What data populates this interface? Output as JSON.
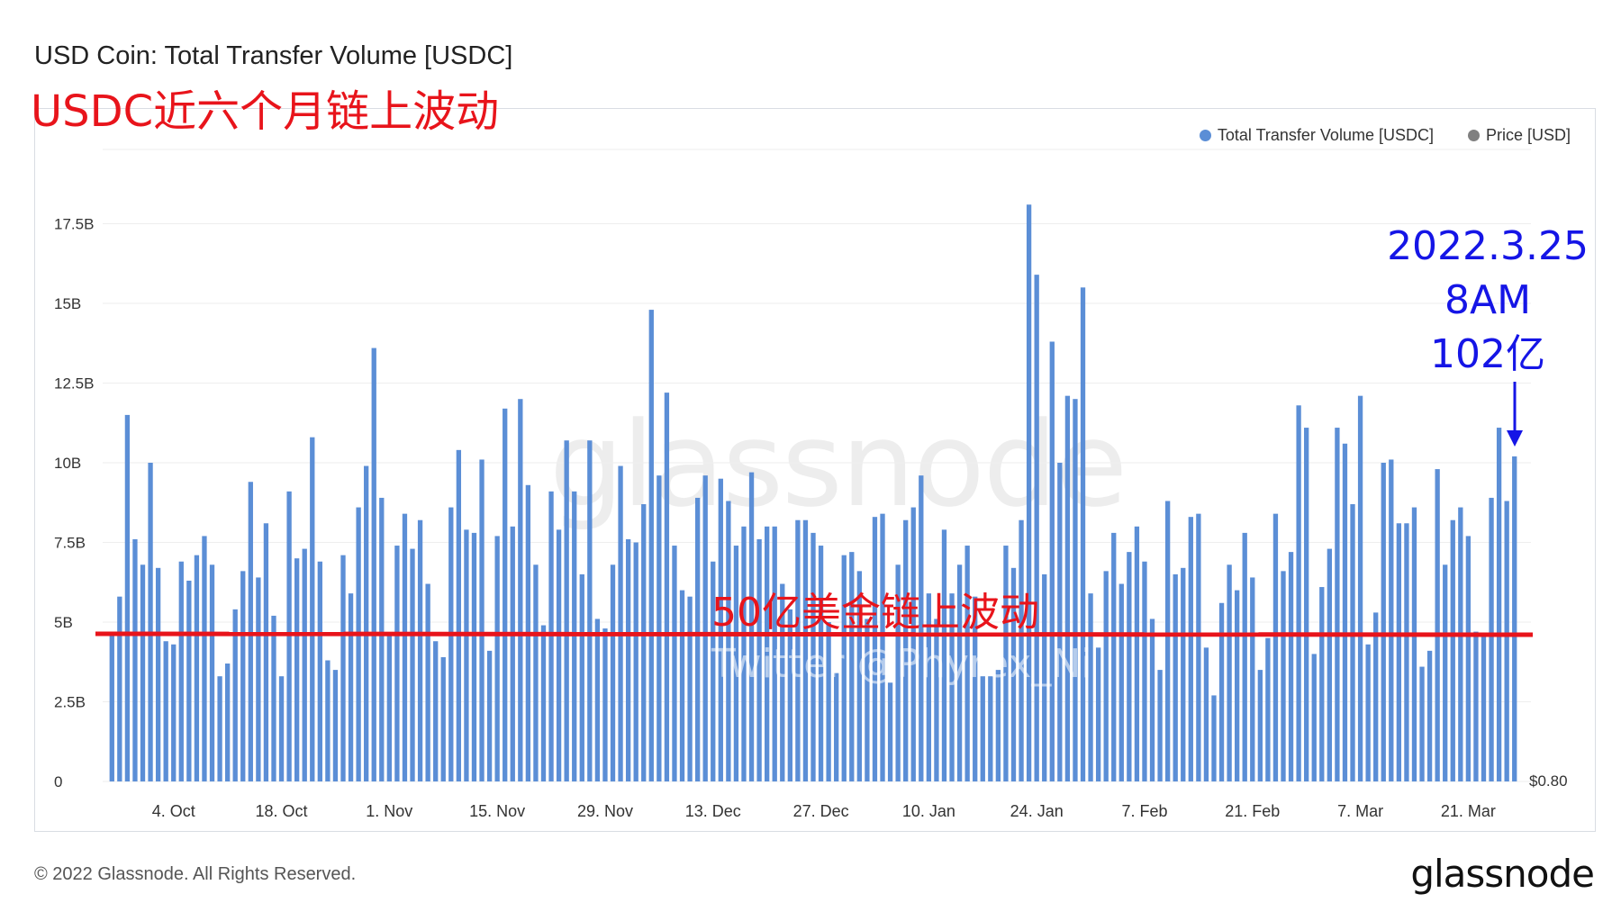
{
  "title": "USD Coin: Total Transfer Volume [USDC]",
  "annotation_title": "USDC近六个月链上波动",
  "annotation_line": "50亿美金链上波动",
  "annotation_blue": [
    "2022.3.25",
    "8AM",
    "102亿"
  ],
  "watermark": "glassnode",
  "twitter": "Twitter @Phyrex_Ni",
  "footer": "© 2022 Glassnode. All Rights Reserved.",
  "brand": "glassnode",
  "legend": [
    {
      "label": "Total Transfer Volume [USDC]",
      "color": "#5b8ed6"
    },
    {
      "label": "Price [USD]",
      "color": "#808080"
    }
  ],
  "colors": {
    "bar": "#5b8ed6",
    "threshold_line": "#e8141b",
    "annotation_arrow": "#1515e6"
  },
  "chart_data": {
    "type": "bar",
    "ylim": [
      0,
      20
    ],
    "yticks": [
      {
        "v": 0,
        "label": "0"
      },
      {
        "v": 2.5,
        "label": "2.5B"
      },
      {
        "v": 5,
        "label": "5B"
      },
      {
        "v": 7.5,
        "label": "7.5B"
      },
      {
        "v": 10,
        "label": "10B"
      },
      {
        "v": 12.5,
        "label": "12.5B"
      },
      {
        "v": 15,
        "label": "15B"
      },
      {
        "v": 17.5,
        "label": "17.5B"
      }
    ],
    "xticks": [
      {
        "index": 8,
        "label": "4. Oct"
      },
      {
        "index": 22,
        "label": "18. Oct"
      },
      {
        "index": 36,
        "label": "1. Nov"
      },
      {
        "index": 50,
        "label": "15. Nov"
      },
      {
        "index": 64,
        "label": "29. Nov"
      },
      {
        "index": 78,
        "label": "13. Dec"
      },
      {
        "index": 92,
        "label": "27. Dec"
      },
      {
        "index": 106,
        "label": "10. Jan"
      },
      {
        "index": 120,
        "label": "24. Jan"
      },
      {
        "index": 134,
        "label": "7. Feb"
      },
      {
        "index": 148,
        "label": "21. Feb"
      },
      {
        "index": 162,
        "label": "7. Mar"
      },
      {
        "index": 176,
        "label": "21. Mar"
      }
    ],
    "right_axis_label": "$0.80",
    "threshold": 4.9,
    "unit": "B",
    "series": [
      {
        "name": "Total Transfer Volume [USDC]",
        "values": [
          4.6,
          5.8,
          11.5,
          7.6,
          6.8,
          10.0,
          6.7,
          4.4,
          4.3,
          6.9,
          6.3,
          7.1,
          7.7,
          6.8,
          3.3,
          3.7,
          5.4,
          6.6,
          9.4,
          6.4,
          8.1,
          5.2,
          3.3,
          9.1,
          7.0,
          7.3,
          10.8,
          6.9,
          3.8,
          3.5,
          7.1,
          5.9,
          8.6,
          9.9,
          13.6,
          8.9,
          4.6,
          7.4,
          8.4,
          7.3,
          8.2,
          6.2,
          4.4,
          3.9,
          8.6,
          10.4,
          7.9,
          7.8,
          10.1,
          4.1,
          7.7,
          11.7,
          8.0,
          12.0,
          9.3,
          6.8,
          4.9,
          9.1,
          7.9,
          10.7,
          9.1,
          6.5,
          10.7,
          5.1,
          4.8,
          6.8,
          9.9,
          7.6,
          7.5,
          8.7,
          14.8,
          9.6,
          12.2,
          7.4,
          6.0,
          5.8,
          8.9,
          9.6,
          6.9,
          9.5,
          8.8,
          7.4,
          8.0,
          9.7,
          7.6,
          8.0,
          8.0,
          6.2,
          5.4,
          8.2,
          8.2,
          7.8,
          7.4,
          5.0,
          3.4,
          7.1,
          7.2,
          6.6,
          5.1,
          8.3,
          8.4,
          3.1,
          6.8,
          8.2,
          8.6,
          9.6,
          5.9,
          5.1,
          7.9,
          5.9,
          6.8,
          7.4,
          5.8,
          3.3,
          3.3,
          3.5,
          7.4,
          6.7,
          8.2,
          18.1,
          15.9,
          6.5,
          13.8,
          10.0,
          12.1,
          12.0,
          15.5,
          5.9,
          4.2,
          6.6,
          7.8,
          6.2,
          7.2,
          8.0,
          6.9,
          5.1,
          3.5,
          8.8,
          6.5,
          6.7,
          8.3,
          8.4,
          4.2,
          2.7,
          5.6,
          6.8,
          6.0,
          7.8,
          6.4,
          3.5,
          4.5,
          8.4,
          6.6,
          7.2,
          11.8,
          11.1,
          4.0,
          6.1,
          7.3,
          11.1,
          10.6,
          8.7,
          12.1,
          4.3,
          5.3,
          10.0,
          10.1,
          8.1,
          8.1,
          8.6,
          3.6,
          4.1,
          9.8,
          6.8,
          8.2,
          8.6,
          7.7,
          4.7,
          4.6,
          8.9,
          11.1,
          8.8,
          10.2
        ]
      }
    ]
  }
}
